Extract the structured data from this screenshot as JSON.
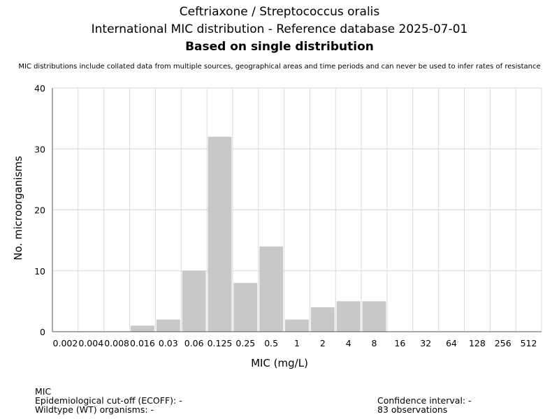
{
  "header": {
    "title_line1": "Ceftriaxone / Streptococcus oralis",
    "title_line2": "International MIC distribution - Reference database 2025-07-01",
    "title_line3": "Based on single distribution",
    "subtitle": "MIC distributions include collated data from multiple sources, geographical areas and time periods and can never be used to infer rates of resistance"
  },
  "chart_data": {
    "type": "bar",
    "title": "Ceftriaxone / Streptococcus oralis",
    "xlabel": "MIC (mg/L)",
    "ylabel": "No. microorganisms",
    "categories": [
      "0.002",
      "0.004",
      "0.008",
      "0.016",
      "0.03",
      "0.06",
      "0.125",
      "0.25",
      "0.5",
      "1",
      "2",
      "4",
      "8",
      "16",
      "32",
      "64",
      "128",
      "256",
      "512"
    ],
    "values": [
      0,
      0,
      0,
      1,
      2,
      10,
      32,
      8,
      14,
      2,
      4,
      5,
      5,
      0,
      0,
      0,
      0,
      0,
      0
    ],
    "ylim": [
      0,
      40
    ],
    "yticks": [
      0,
      10,
      20,
      30,
      40
    ],
    "grid": true,
    "bar_color": "#c8c8c8"
  },
  "footer": {
    "mic_label": "MIC",
    "ecoff": "Epidemiological cut-off (ECOFF): -",
    "wildtype": "Wildtype (WT) organisms:  -",
    "confidence": "Confidence interval: -",
    "observations": "83 observations"
  }
}
